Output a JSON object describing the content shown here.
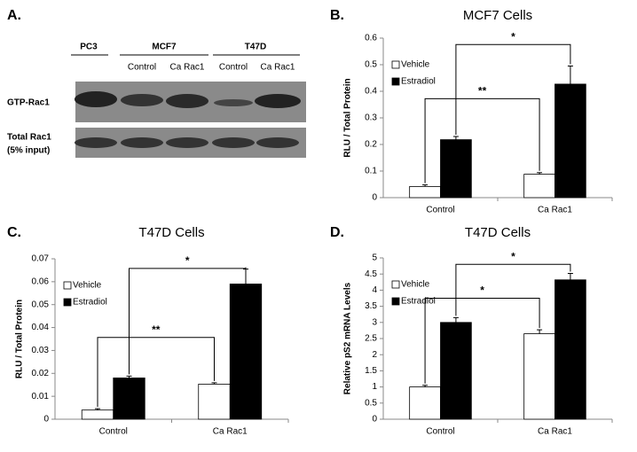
{
  "blot": {
    "label": "A.",
    "groups": [
      "PC3",
      "MCF7",
      "T47D"
    ],
    "lanes": [
      "Control",
      "Ca Rac1",
      "Control",
      "Ca Rac1"
    ],
    "rows": [
      "GTP-Rac1",
      "Total Rac1",
      "(5% input)"
    ]
  },
  "chart_data": [
    {
      "type": "bar",
      "label": "B.",
      "title": "MCF7 Cells",
      "ylabel": "RLU / Total Protein",
      "categories": [
        "Control",
        "Ca Rac1"
      ],
      "series": [
        {
          "name": "Vehicle",
          "color": "#ffffff",
          "values": [
            0.042,
            0.088
          ],
          "errors": [
            0.006,
            0.006
          ]
        },
        {
          "name": "Estradiol",
          "color": "#000000",
          "values": [
            0.218,
            0.427
          ],
          "errors": [
            0.012,
            0.068
          ]
        }
      ],
      "ylim": [
        0,
        0.6
      ],
      "yticks": [
        0,
        0.1,
        0.2,
        0.3,
        0.4,
        0.5,
        0.6
      ],
      "annotations": [
        "*",
        "**"
      ],
      "legend": "upper left"
    },
    {
      "type": "bar",
      "label": "C.",
      "title": "T47D Cells",
      "ylabel": "RLU / Total Protein",
      "categories": [
        "Control",
        "Ca Rac1"
      ],
      "series": [
        {
          "name": "Vehicle",
          "color": "#ffffff",
          "values": [
            0.004,
            0.0153
          ],
          "errors": [
            0.0006,
            0.0006
          ]
        },
        {
          "name": "Estradiol",
          "color": "#000000",
          "values": [
            0.018,
            0.059
          ],
          "errors": [
            0.0008,
            0.0065
          ]
        }
      ],
      "ylim": [
        0,
        0.07
      ],
      "yticks": [
        0,
        0.01,
        0.02,
        0.03,
        0.04,
        0.05,
        0.06,
        0.07
      ],
      "annotations": [
        "*",
        "**"
      ],
      "legend": "upper left"
    },
    {
      "type": "bar",
      "label": "D.",
      "title": "T47D Cells",
      "ylabel": "Relative pS2 mRNA Levels",
      "categories": [
        "Control",
        "Ca Rac1"
      ],
      "series": [
        {
          "name": "Vehicle",
          "color": "#ffffff",
          "values": [
            1,
            2.65
          ],
          "errors": [
            0.05,
            0.12
          ]
        },
        {
          "name": "Estradiol",
          "color": "#000000",
          "values": [
            3,
            4.32
          ],
          "errors": [
            0.15,
            0.2
          ]
        }
      ],
      "ylim": [
        0,
        5
      ],
      "yticks": [
        0,
        0.5,
        1,
        1.5,
        2,
        2.5,
        3,
        3.5,
        4,
        4.5,
        5
      ],
      "annotations": [
        "*",
        "*"
      ],
      "legend": "upper left"
    }
  ]
}
